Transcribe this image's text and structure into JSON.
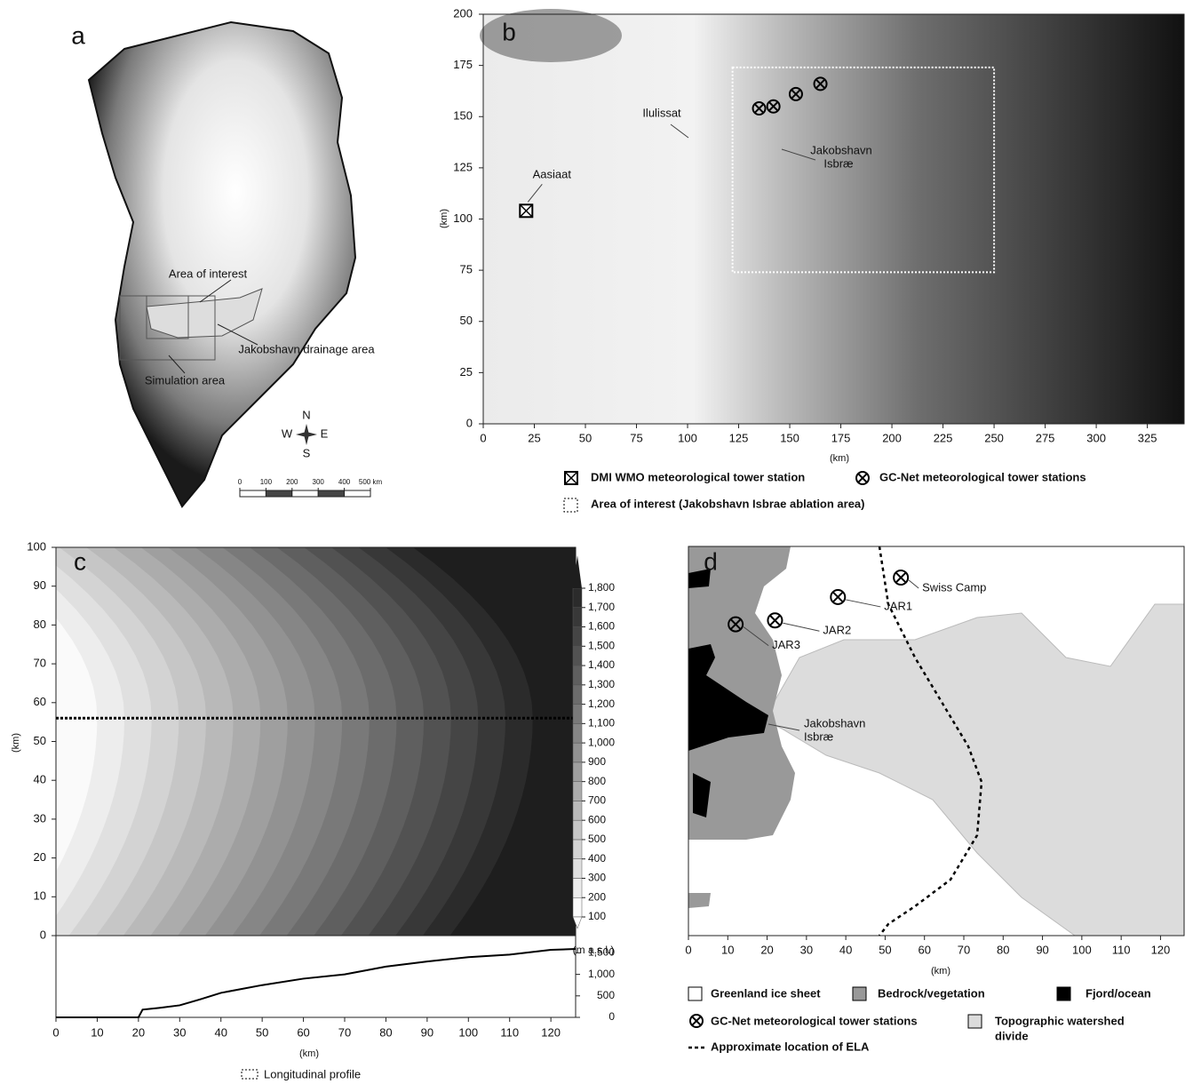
{
  "panel_a": {
    "letter": "a",
    "area_of_interest": "Area of interest",
    "drainage_area": "Jakobshavn drainage area",
    "simulation_area": "Simulation area",
    "compass": {
      "n": "N",
      "s": "S",
      "w": "W",
      "e": "E"
    },
    "scale_ticks": [
      0,
      100,
      200,
      300,
      400,
      {
        "value": 500,
        "label": "500 km"
      }
    ]
  },
  "panel_b": {
    "letter": "b",
    "x_label": "(km)",
    "y_label": "(km)",
    "xlim": [
      0,
      343
    ],
    "ylim": [
      0,
      200
    ],
    "xticks": [
      0,
      25,
      50,
      75,
      100,
      125,
      150,
      175,
      200,
      225,
      250,
      275,
      300,
      325
    ],
    "yticks": [
      0,
      25,
      50,
      75,
      100,
      125,
      150,
      175,
      200
    ],
    "aasiaat": {
      "label": "Aasiaat",
      "x": 21,
      "y": 104
    },
    "ilulissat": "Ilulissat",
    "glacier_label": [
      "Jakobshavn",
      "Isbræ"
    ],
    "gcnet_stations": [
      {
        "x": 135,
        "y": 154
      },
      {
        "x": 142,
        "y": 155
      },
      {
        "x": 153,
        "y": 161
      },
      {
        "x": 165,
        "y": 166
      }
    ],
    "area_of_interest": {
      "x": [
        122,
        250
      ],
      "y": [
        74,
        174
      ]
    },
    "legend": {
      "dmi": "DMI WMO meteorological tower station",
      "gcnet": "GC-Net meteorological tower stations",
      "area": "Area of interest (Jakobshavn Isbrae ablation area)"
    }
  },
  "panel_c": {
    "letter": "c",
    "x_label": "(km)",
    "y_label": "(km)",
    "xlim": [
      0,
      126
    ],
    "ylim": [
      0,
      100
    ],
    "xticks": [
      0,
      10,
      20,
      30,
      40,
      50,
      60,
      70,
      80,
      90,
      100,
      110,
      120
    ],
    "yticks": [
      0,
      10,
      20,
      30,
      40,
      50,
      60,
      70,
      80,
      90,
      100
    ],
    "profile_y": 56,
    "colorbar": {
      "unit": "(m a.s.l.)",
      "ticks": [
        100,
        200,
        300,
        400,
        500,
        600,
        700,
        800,
        900,
        {
          "value": 1000,
          "label": "1,000"
        },
        {
          "value": 1100,
          "label": "1,100"
        },
        {
          "value": 1200,
          "label": "1,200"
        },
        {
          "value": 1300,
          "label": "1,300"
        },
        {
          "value": 1400,
          "label": "1,400"
        },
        {
          "value": 1500,
          "label": "1,500"
        },
        {
          "value": 1600,
          "label": "1,600"
        },
        {
          "value": 1700,
          "label": "1,700"
        },
        {
          "value": 1800,
          "label": "1,800"
        }
      ]
    },
    "profile": {
      "ylim": [
        0,
        1900
      ],
      "yticks": [
        0,
        500,
        {
          "value": 1000,
          "label": "1,000"
        },
        {
          "value": 1500,
          "label": "1,500"
        }
      ],
      "x": [
        0,
        20,
        21,
        25,
        30,
        35,
        40,
        50,
        60,
        70,
        80,
        90,
        100,
        110,
        120,
        126
      ],
      "values": [
        0,
        0,
        180,
        220,
        280,
        420,
        570,
        750,
        900,
        1000,
        1180,
        1300,
        1400,
        1460,
        1570,
        1590
      ]
    },
    "legend": "Longitudinal profile"
  },
  "panel_d": {
    "letter": "d",
    "x_label": "(km)",
    "xlim": [
      0,
      126
    ],
    "ylim": [
      0,
      100
    ],
    "xticks": [
      0,
      10,
      20,
      30,
      40,
      50,
      60,
      70,
      80,
      90,
      100,
      110,
      120
    ],
    "stations": [
      {
        "label": "Swiss Camp",
        "x": 54,
        "y": 92
      },
      {
        "label": "JAR1",
        "x": 38,
        "y": 87
      },
      {
        "label": "JAR2",
        "x": 22,
        "y": 81
      },
      {
        "label": "JAR3",
        "x": 12,
        "y": 80
      }
    ],
    "glacier_label": [
      "Jakobshavn",
      "Isbræ"
    ],
    "legend": {
      "ice": "Greenland ice sheet",
      "bedrock": "Bedrock/vegetation",
      "fjord": "Fjord/ocean",
      "gcnet": "GC-Net meteorological tower stations",
      "watershed": [
        "Topographic watershed",
        "divide"
      ],
      "ela": "Approximate location of ELA"
    }
  }
}
